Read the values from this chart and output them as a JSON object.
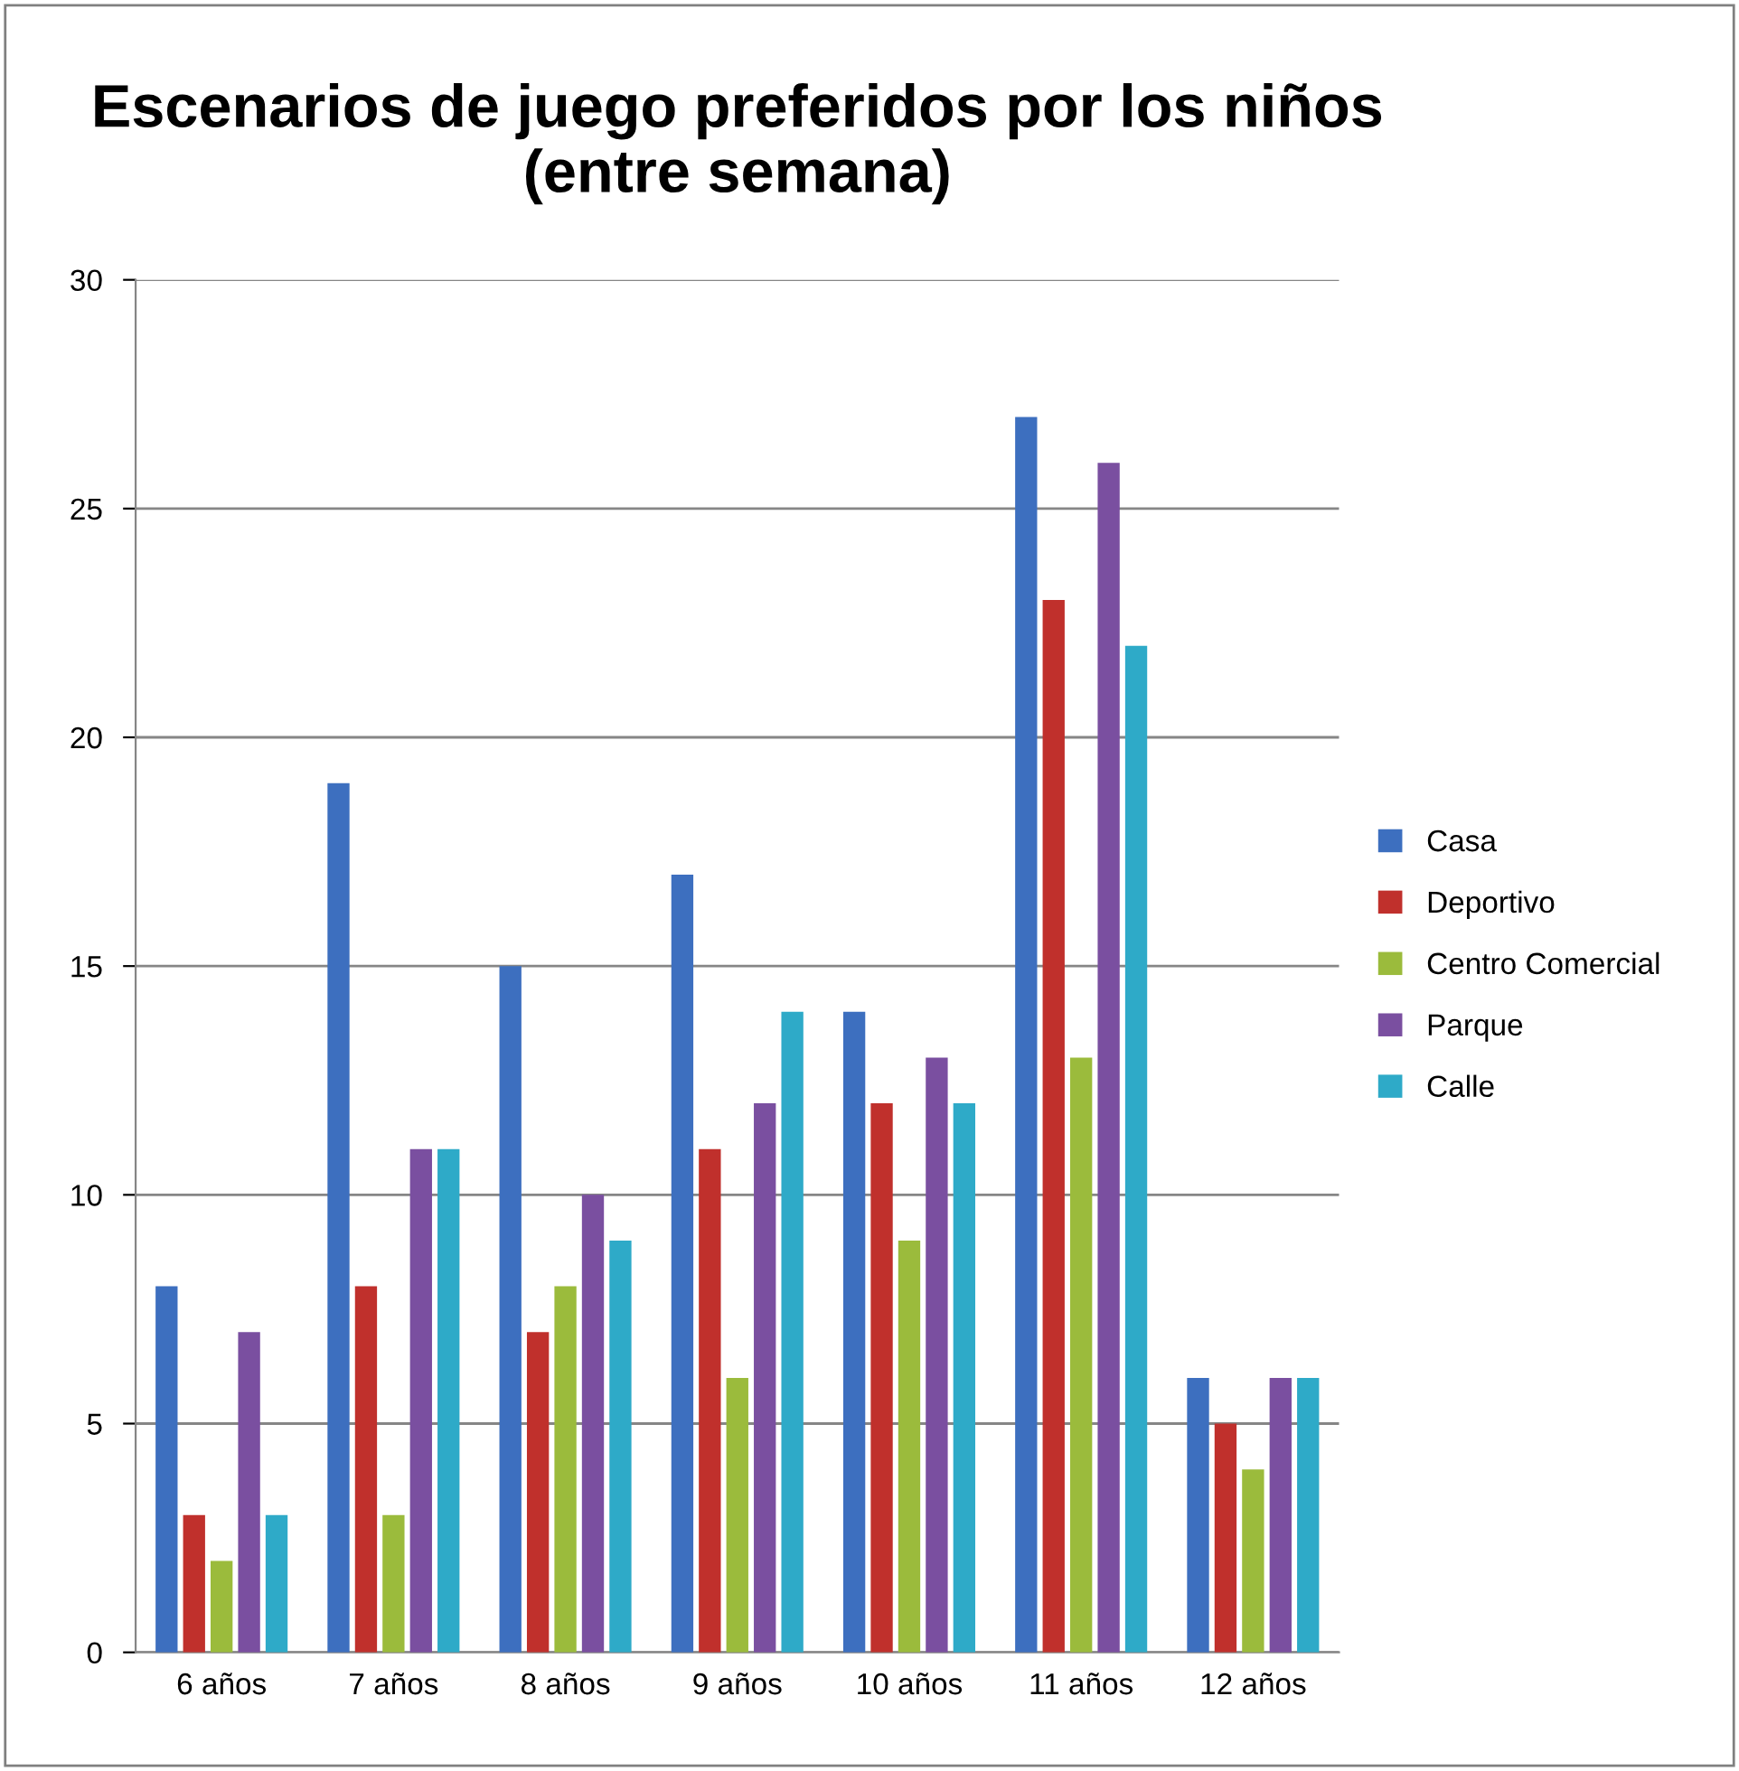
{
  "chart_data": {
    "type": "bar",
    "title": "Escenarios de juego preferidos por los niños\n(entre semana)",
    "categories": [
      "6 años",
      "7 años",
      "8 años",
      "9 años",
      "10 años",
      "11 años",
      "12 años"
    ],
    "series": [
      {
        "name": "Casa",
        "color": "#3d6fbf",
        "values": [
          8,
          19,
          15,
          17,
          14,
          27,
          6
        ]
      },
      {
        "name": "Deportivo",
        "color": "#c0302c",
        "values": [
          3,
          8,
          7,
          11,
          12,
          23,
          5
        ]
      },
      {
        "name": "Centro Comercial",
        "color": "#9bbb3c",
        "values": [
          2,
          3,
          8,
          6,
          9,
          13,
          4
        ]
      },
      {
        "name": "Parque",
        "color": "#7a4fa0",
        "values": [
          7,
          11,
          10,
          12,
          13,
          26,
          6
        ]
      },
      {
        "name": "Calle",
        "color": "#2eaac8",
        "values": [
          3,
          11,
          9,
          14,
          12,
          22,
          6
        ]
      }
    ],
    "ylim": [
      0,
      30
    ],
    "yticks": [
      0,
      5,
      10,
      15,
      20,
      25,
      30
    ],
    "grid": "y",
    "legend": "right"
  }
}
